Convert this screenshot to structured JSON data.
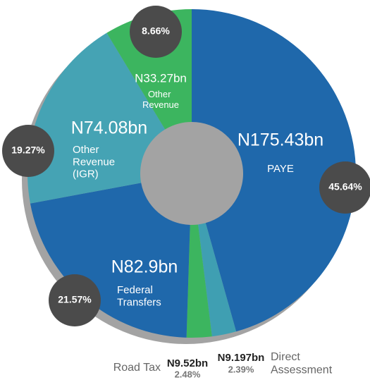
{
  "chart_data": {
    "type": "donut",
    "categories": [
      "PAYE",
      "Direct Assessment",
      "Road Tax",
      "Federal Transfers",
      "Other Revenue (IGR)",
      "Other Revenue"
    ],
    "amounts": [
      "N175.43bn",
      "N9.197bn",
      "N9.52bn",
      "N82.9bn",
      "N74.08bn",
      "N33.27bn"
    ],
    "values": [
      45.64,
      2.39,
      2.48,
      21.57,
      19.27,
      8.66
    ],
    "value_labels": [
      "45.64%",
      "2.39%",
      "2.48%",
      "21.57%",
      "19.27%",
      "8.66%"
    ],
    "colors": [
      "#1f68ab",
      "#3f9fb2",
      "#3cb55f",
      "#1f68ab",
      "#45a3b4",
      "#3cb55f"
    ]
  }
}
